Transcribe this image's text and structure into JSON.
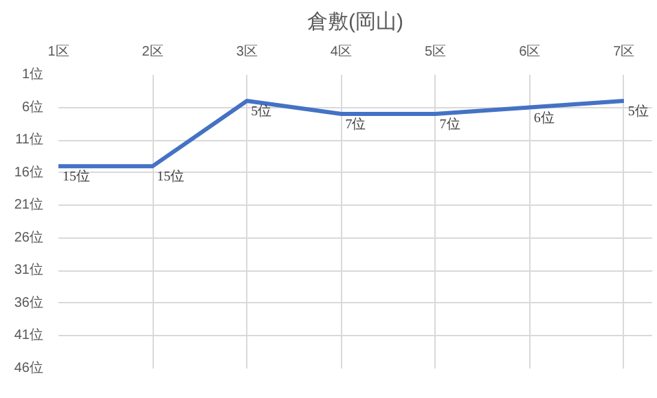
{
  "chart_data": {
    "type": "line",
    "title": "倉敷(岡山)",
    "categories": [
      "1区",
      "2区",
      "3区",
      "4区",
      "5区",
      "6区",
      "7区"
    ],
    "series": [
      {
        "color": "#4472c4",
        "values": [
          15,
          15,
          5,
          7,
          7,
          6,
          5
        ],
        "value_labels": [
          "15位",
          "15位",
          "5位",
          "7位",
          "7位",
          "6位",
          "5位"
        ]
      }
    ],
    "ylim": [
      46,
      1
    ],
    "yticks": [
      {
        "value": 1,
        "label": "1位"
      },
      {
        "value": 6,
        "label": "6位"
      },
      {
        "value": 11,
        "label": "11位"
      },
      {
        "value": 16,
        "label": "16位"
      },
      {
        "value": 21,
        "label": "21位"
      },
      {
        "value": 26,
        "label": "26位"
      },
      {
        "value": 31,
        "label": "31位"
      },
      {
        "value": 36,
        "label": "36位"
      },
      {
        "value": 41,
        "label": "41位"
      },
      {
        "value": 46,
        "label": "46位"
      }
    ],
    "grid": true
  }
}
